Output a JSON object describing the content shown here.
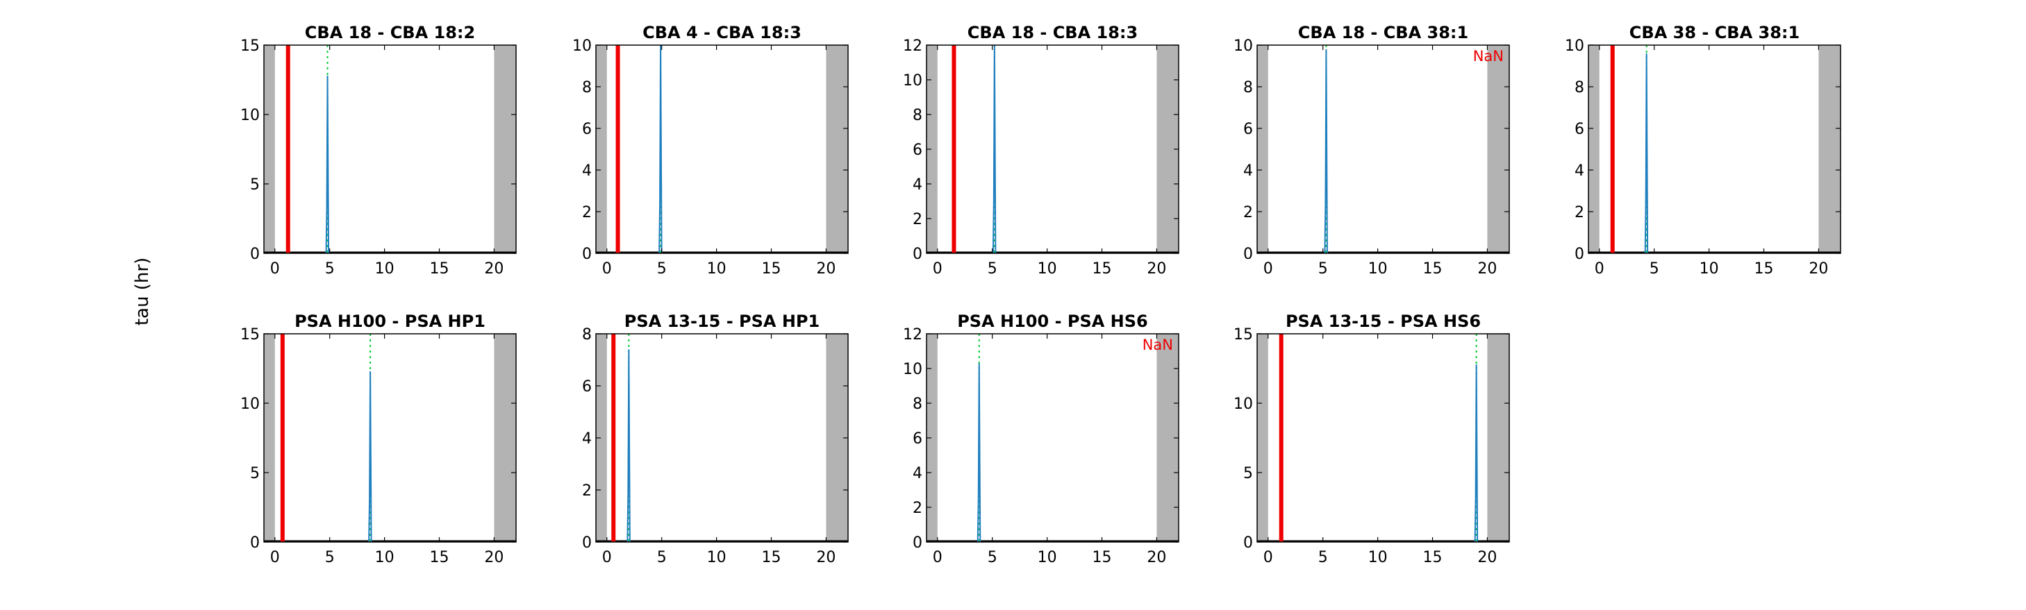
{
  "figure": {
    "ylabel": "tau (hr)",
    "colors": {
      "red_line": "#ee0000",
      "green_peak": "#00cc33",
      "blue_trace": "#1f7fbf",
      "gray_band": "#b3b3b3",
      "nan_text": "#ee0000"
    }
  },
  "chart_data": [
    {
      "type": "line",
      "title": "CBA 18 - CBA 18:2",
      "xlim": [
        -1,
        22
      ],
      "ylim": [
        0,
        15
      ],
      "yticks": [
        0,
        5,
        10,
        15
      ],
      "xticks": [
        0,
        5,
        10,
        15,
        20
      ],
      "gray_bands": [
        [
          -1,
          0
        ],
        [
          20,
          22
        ]
      ],
      "red_line_x": 1.2,
      "peak_x": 4.8,
      "peak_y": 12.8,
      "note": ""
    },
    {
      "type": "line",
      "title": "CBA 4 - CBA 18:3",
      "xlim": [
        -1,
        22
      ],
      "ylim": [
        0,
        10
      ],
      "yticks": [
        0,
        2,
        4,
        6,
        8,
        10
      ],
      "xticks": [
        0,
        5,
        10,
        15,
        20
      ],
      "gray_bands": [
        [
          -1,
          0
        ],
        [
          20,
          22
        ]
      ],
      "red_line_x": 1.0,
      "peak_x": 4.9,
      "peak_y": 10.0,
      "note": ""
    },
    {
      "type": "line",
      "title": "CBA 18 - CBA 18:3",
      "xlim": [
        -1,
        22
      ],
      "ylim": [
        0,
        12
      ],
      "yticks": [
        0,
        2,
        4,
        6,
        8,
        10,
        12
      ],
      "xticks": [
        0,
        5,
        10,
        15,
        20
      ],
      "gray_bands": [
        [
          -1,
          0
        ],
        [
          20,
          22
        ]
      ],
      "red_line_x": 1.5,
      "peak_x": 5.2,
      "peak_y": 12.0,
      "note": ""
    },
    {
      "type": "line",
      "title": "CBA 18 - CBA 38:1",
      "xlim": [
        -1,
        22
      ],
      "ylim": [
        0,
        10
      ],
      "yticks": [
        0,
        2,
        4,
        6,
        8,
        10
      ],
      "xticks": [
        0,
        5,
        10,
        15,
        20
      ],
      "gray_bands": [
        [
          -1,
          0
        ],
        [
          20,
          22
        ]
      ],
      "red_line_x": null,
      "peak_x": 5.3,
      "peak_y": 9.8,
      "note": "NaN"
    },
    {
      "type": "line",
      "title": "CBA 38 - CBA 38:1",
      "xlim": [
        -1,
        22
      ],
      "ylim": [
        0,
        10
      ],
      "yticks": [
        0,
        2,
        4,
        6,
        8,
        10
      ],
      "xticks": [
        0,
        5,
        10,
        15,
        20
      ],
      "gray_bands": [
        [
          -1,
          0
        ],
        [
          20,
          22
        ]
      ],
      "red_line_x": 1.2,
      "peak_x": 4.3,
      "peak_y": 9.6,
      "note": ""
    },
    {
      "type": "line",
      "title": "PSA H100 - PSA HP1",
      "xlim": [
        -1,
        22
      ],
      "ylim": [
        0,
        15
      ],
      "yticks": [
        0,
        5,
        10,
        15
      ],
      "xticks": [
        0,
        5,
        10,
        15,
        20
      ],
      "gray_bands": [
        [
          -1,
          0
        ],
        [
          20,
          22
        ]
      ],
      "red_line_x": 0.7,
      "peak_x": 8.7,
      "peak_y": 12.3,
      "note": ""
    },
    {
      "type": "line",
      "title": "PSA 13-15 - PSA HP1",
      "xlim": [
        -1,
        22
      ],
      "ylim": [
        0,
        8
      ],
      "yticks": [
        0,
        2,
        4,
        6,
        8
      ],
      "xticks": [
        0,
        5,
        10,
        15,
        20
      ],
      "gray_bands": [
        [
          -1,
          0
        ],
        [
          20,
          22
        ]
      ],
      "red_line_x": 0.6,
      "peak_x": 2.0,
      "peak_y": 7.4,
      "note": ""
    },
    {
      "type": "line",
      "title": "PSA H100 - PSA HS6",
      "xlim": [
        -1,
        22
      ],
      "ylim": [
        0,
        12
      ],
      "yticks": [
        0,
        2,
        4,
        6,
        8,
        10,
        12
      ],
      "xticks": [
        0,
        5,
        10,
        15,
        20
      ],
      "gray_bands": [
        [
          -1,
          0
        ],
        [
          20,
          22
        ]
      ],
      "red_line_x": null,
      "peak_x": 3.8,
      "peak_y": 10.3,
      "note": "NaN"
    },
    {
      "type": "line",
      "title": "PSA 13-15 - PSA HS6",
      "xlim": [
        -1,
        22
      ],
      "ylim": [
        0,
        15
      ],
      "yticks": [
        0,
        5,
        10,
        15
      ],
      "xticks": [
        0,
        5,
        10,
        15,
        20
      ],
      "gray_bands": [
        [
          -1,
          0
        ],
        [
          20,
          22
        ]
      ],
      "red_line_x": 1.2,
      "peak_x": 19.0,
      "peak_y": 12.8,
      "note": ""
    }
  ]
}
